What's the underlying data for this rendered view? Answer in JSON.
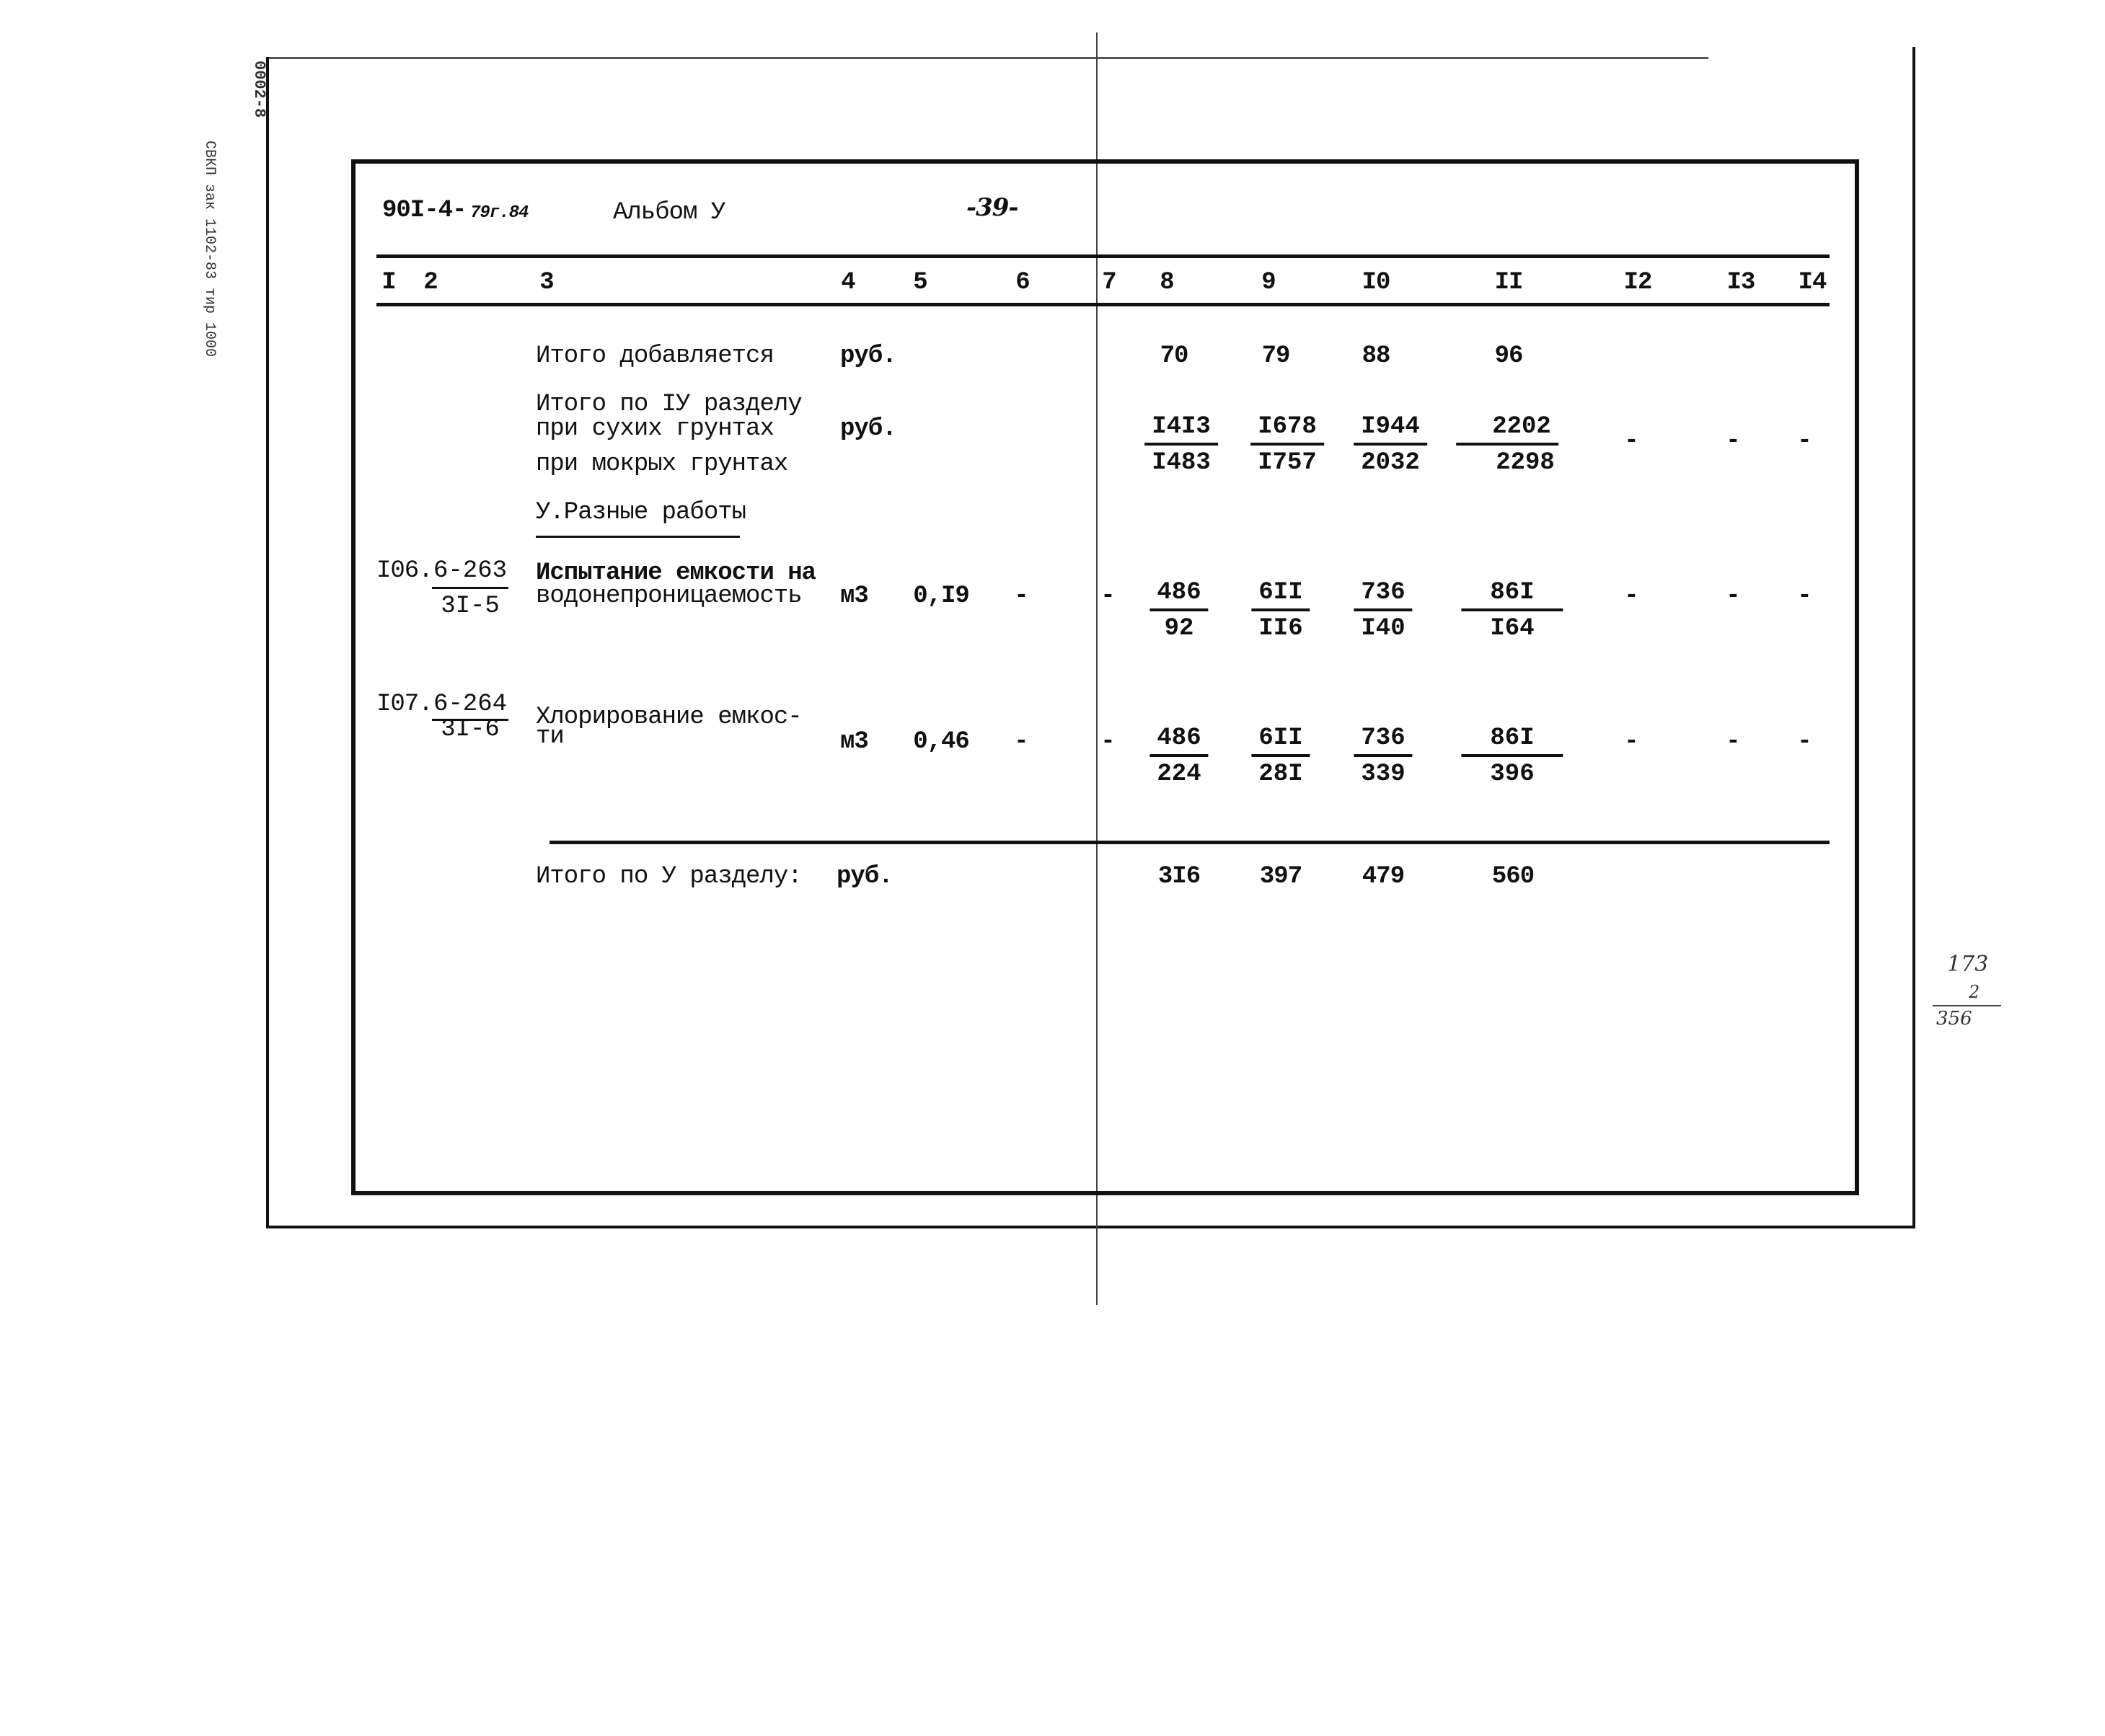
{
  "margin": {
    "stamp": "0002-8",
    "archive_note": "СВКП зак 1102-83 тир 1000"
  },
  "header": {
    "doc_code": "90I-4-",
    "doc_code_handwritten": "79г.84",
    "album": "Альбом У",
    "page": "-39-"
  },
  "columns": [
    "I",
    "2",
    "3",
    "4",
    "5",
    "6",
    "7",
    "8",
    "9",
    "I0",
    "II",
    "I2",
    "I3",
    "I4"
  ],
  "rows": {
    "added": {
      "name": "Итого добавляется",
      "unit": "руб.",
      "values": [
        "70",
        "79",
        "88",
        "96"
      ]
    },
    "total4": {
      "name1": "Итого по IУ разделу",
      "name2": "при сухих грунтах",
      "name3": "при мокрых грунтах",
      "unit": "руб.",
      "dry": [
        "I4I3",
        "I678",
        "I944",
        "2202"
      ],
      "wet": [
        "I483",
        "I757",
        "2032",
        "2298"
      ],
      "dashes": [
        "-",
        "-",
        "-"
      ]
    },
    "section5": {
      "title": "У.Разные работы"
    },
    "r106": {
      "num": "I06.",
      "code": "6-263",
      "code_den": "3I-5",
      "name1": "Испытание емкости на",
      "name2": "водонепроницаемость",
      "unit": "м3",
      "qty": "0,I9",
      "c6": "-",
      "c7": "-",
      "top": [
        "486",
        "6II",
        "736",
        "86I"
      ],
      "bottom": [
        "92",
        "II6",
        "I40",
        "I64"
      ],
      "dashes": [
        "-",
        "-",
        "-"
      ]
    },
    "r107": {
      "num": "I07.",
      "code": "6-264",
      "code_den": "3I-6",
      "name1": "Хлорирование емкос-",
      "name2": "ти",
      "unit": "м3",
      "qty": "0,46",
      "c6": "-",
      "c7": "-",
      "top": [
        "486",
        "6II",
        "736",
        "86I"
      ],
      "bottom": [
        "224",
        "28I",
        "339",
        "396"
      ],
      "dashes": [
        "-",
        "-",
        "-"
      ]
    },
    "total5": {
      "name": "Итого по У разделу:",
      "unit": "руб.",
      "values": [
        "3I6",
        "397",
        "479",
        "560"
      ]
    }
  },
  "handwritten_note": {
    "top": "173",
    "mid": "2",
    "bottom": "356"
  }
}
